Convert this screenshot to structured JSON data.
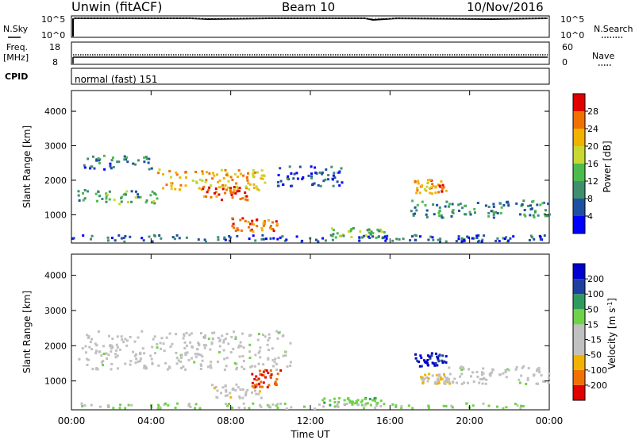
{
  "header": {
    "station": "Unwin (fitACF)",
    "beam": "Beam 10",
    "date": "10/Nov/2016"
  },
  "noise_panel": {
    "left_label": "N.Sky",
    "right_label": "N.Search",
    "left_ticks": [
      "10^5",
      "10^0"
    ],
    "right_ticks": [
      "10^5",
      "10^0"
    ]
  },
  "freq_panel": {
    "left_label_line1": "Freq.",
    "left_label_line2": "[MHz]",
    "left_ticks": [
      "18",
      "8"
    ],
    "right_ticks": [
      "60",
      "0"
    ],
    "right_label": "Nave"
  },
  "cpid": {
    "label": "CPID",
    "program": "normal (fast) 151"
  },
  "chart_data": [
    {
      "type": "heatmap",
      "name": "power",
      "ylabel": "Slant Range [km]",
      "ylim": [
        180,
        4600
      ],
      "y_ticks": [
        "1000",
        "2000",
        "3000",
        "4000"
      ],
      "colorbar": {
        "label": "Power [dB]",
        "ticks": [
          "4",
          "8",
          "12",
          "16",
          "20",
          "24",
          "28"
        ],
        "range": [
          0,
          32
        ],
        "colors": [
          "#0000ff",
          "#1f4fa0",
          "#3f8f6f",
          "#4cbb4c",
          "#c8d830",
          "#f2b200",
          "#f07000",
          "#e00000"
        ]
      },
      "x_ticks": [
        "00:00",
        "04:00",
        "08:00",
        "12:00",
        "16:00",
        "20:00",
        "00:00"
      ],
      "regions": [
        {
          "t0": 0.3,
          "t1": 4.5,
          "r0": 1300,
          "r1": 1700,
          "level": 12
        },
        {
          "t0": 0.5,
          "t1": 4.0,
          "r0": 2300,
          "r1": 2700,
          "level": 8
        },
        {
          "t0": 4.3,
          "t1": 9.8,
          "r0": 1700,
          "r1": 2300,
          "level": 22
        },
        {
          "t0": 6.5,
          "t1": 8.8,
          "r0": 1400,
          "r1": 1800,
          "level": 28
        },
        {
          "t0": 8.0,
          "t1": 10.3,
          "r0": 500,
          "r1": 900,
          "level": 26
        },
        {
          "t0": 10.3,
          "t1": 13.6,
          "r0": 1800,
          "r1": 2400,
          "level": 6
        },
        {
          "t0": 13.0,
          "t1": 15.7,
          "r0": 300,
          "r1": 600,
          "level": 14
        },
        {
          "t0": 17.1,
          "t1": 18.8,
          "r0": 1600,
          "r1": 2000,
          "level": 24
        },
        {
          "t0": 17.0,
          "t1": 24.0,
          "r0": 900,
          "r1": 1400,
          "level": 10
        },
        {
          "t0": 0.0,
          "t1": 24.0,
          "r0": 200,
          "r1": 400,
          "level": 6
        }
      ]
    },
    {
      "type": "heatmap",
      "name": "velocity",
      "ylabel": "Slant Range [km]",
      "ylim": [
        180,
        4600
      ],
      "y_ticks": [
        "1000",
        "2000",
        "3000",
        "4000"
      ],
      "colorbar": {
        "label": "Velocity [m s^-1]",
        "ticks": [
          "200",
          "100",
          "50",
          "15",
          "-15",
          "-50",
          "-100",
          "-200"
        ],
        "range": [
          -250,
          250
        ],
        "colors": [
          "#e00000",
          "#f07000",
          "#f2b200",
          "#c0c0c0",
          "#c0c0c0",
          "#6fd24a",
          "#2f9a5f",
          "#1f3fa0",
          "#0000d0"
        ]
      },
      "x_ticks": [
        "00:00",
        "04:00",
        "08:00",
        "12:00",
        "16:00",
        "20:00",
        "00:00"
      ],
      "xlabel": "Time UT",
      "regions": [
        {
          "t0": 0.3,
          "t1": 11.0,
          "r0": 1300,
          "r1": 2400,
          "level": 0
        },
        {
          "t0": 7.0,
          "t1": 9.5,
          "r0": 500,
          "r1": 900,
          "level": -60
        },
        {
          "t0": 9.0,
          "t1": 10.5,
          "r0": 800,
          "r1": 1300,
          "level": -200
        },
        {
          "t0": 17.2,
          "t1": 18.8,
          "r0": 1400,
          "r1": 1800,
          "level": 200
        },
        {
          "t0": 17.5,
          "t1": 19.0,
          "r0": 900,
          "r1": 1200,
          "level": -80
        },
        {
          "t0": 18.5,
          "t1": 24.0,
          "r0": 900,
          "r1": 1400,
          "level": 0
        },
        {
          "t0": 12.5,
          "t1": 15.5,
          "r0": 300,
          "r1": 500,
          "level": 60
        },
        {
          "t0": 0.0,
          "t1": 24.0,
          "r0": 200,
          "r1": 350,
          "level": 30
        }
      ]
    }
  ]
}
